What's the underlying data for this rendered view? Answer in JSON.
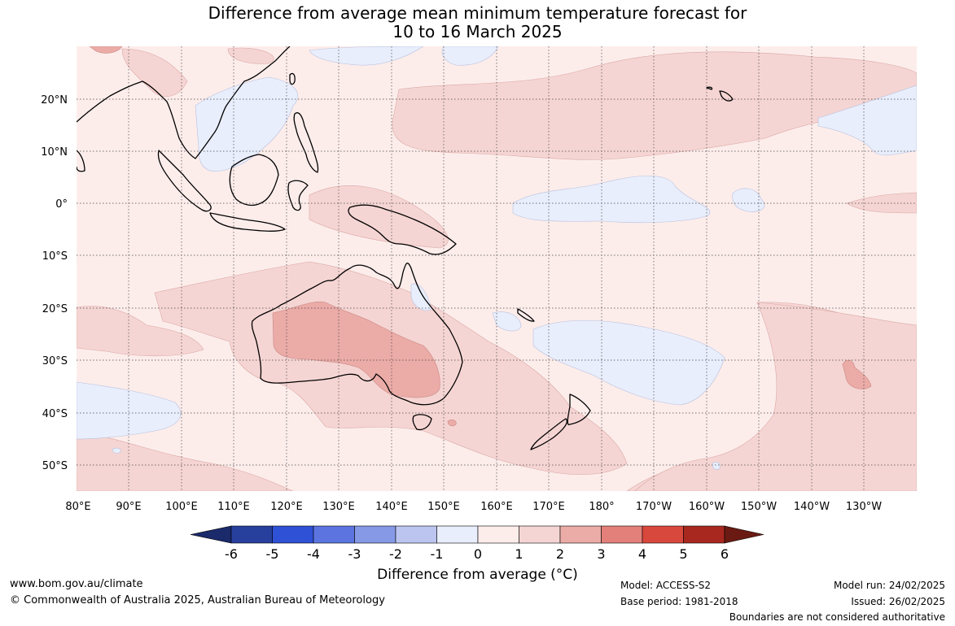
{
  "title": {
    "line1": "Difference from average mean minimum temperature forecast for",
    "line2": "10 to 16 March 2025"
  },
  "map": {
    "region": "Australia, Indian and Pacific Oceans",
    "lon_labels": [
      "80°E",
      "90°E",
      "100°E",
      "110°E",
      "120°E",
      "130°E",
      "140°E",
      "150°E",
      "160°E",
      "170°E",
      "180°",
      "170°W",
      "160°W",
      "150°W",
      "140°W",
      "130°W"
    ],
    "lat_labels": [
      "20°N",
      "10°N",
      "0°",
      "10°S",
      "20°S",
      "30°S",
      "40°S",
      "50°S"
    ],
    "gridlines": "dotted"
  },
  "colorbar": {
    "ticks": [
      "-6",
      "-5",
      "-4",
      "-3",
      "-2",
      "-1",
      "0",
      "1",
      "2",
      "3",
      "4",
      "5",
      "6"
    ],
    "colors": [
      "#1b2a6b",
      "#27409e",
      "#2f51d6",
      "#5b74e0",
      "#8599e6",
      "#bcc5f0",
      "#e9eefc",
      "#fcedeb",
      "#f5d5d3",
      "#ebaba7",
      "#e38079",
      "#d9483c",
      "#a82820",
      "#6a1a12"
    ],
    "title": "Difference from average (°C)"
  },
  "footer": {
    "website": "www.bom.gov.au/climate",
    "copyright": "© Commonwealth of Australia 2025, Australian Bureau of Meteorology",
    "model": "Model: ACCESS-S2",
    "base_period": "Base period: 1981-2018",
    "model_run": "Model run: 24/02/2025",
    "issued": "Issued: 26/02/2025",
    "disclaimer": "Boundaries are not considered authoritative"
  }
}
